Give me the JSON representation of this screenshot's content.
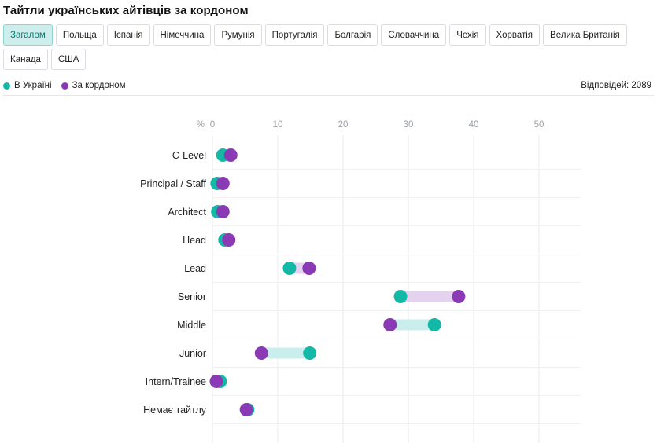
{
  "page": {
    "title": "Тайтли українських айтівців за кордоном",
    "tabs": [
      {
        "label": "Загалом",
        "active": true
      },
      {
        "label": "Польща",
        "active": false
      },
      {
        "label": "Іспанія",
        "active": false
      },
      {
        "label": "Німеччина",
        "active": false
      },
      {
        "label": "Румунія",
        "active": false
      },
      {
        "label": "Португалія",
        "active": false
      },
      {
        "label": "Болгарія",
        "active": false
      },
      {
        "label": "Словаччина",
        "active": false
      },
      {
        "label": "Чехія",
        "active": false
      },
      {
        "label": "Хорватія",
        "active": false
      },
      {
        "label": "Велика Британія",
        "active": false
      },
      {
        "label": "Канада",
        "active": false
      },
      {
        "label": "США",
        "active": false
      }
    ],
    "legend": [
      {
        "label": "В Україні",
        "color": "#14b8a6"
      },
      {
        "label": "За кордоном",
        "color": "#8b3ab5"
      }
    ],
    "responses_label": "Відповідей: 2089"
  },
  "chart_data": {
    "type": "dumbbell",
    "x_unit_label": "%",
    "x_ticks": [
      0,
      10,
      20,
      30,
      40,
      50
    ],
    "xlim": [
      0,
      57
    ],
    "categories": [
      "C-Level",
      "Principal / Staff",
      "Architect",
      "Head",
      "Lead",
      "Senior",
      "Middle",
      "Junior",
      "Intern/Trainee",
      "Немає тайтлу"
    ],
    "series": [
      {
        "name": "В Україні",
        "color": "#14b8a6",
        "values": [
          1.6,
          0.7,
          0.8,
          1.9,
          11.8,
          28.8,
          34.0,
          14.9,
          1.2,
          5.4
        ]
      },
      {
        "name": "За кордоном",
        "color": "#8b3ab5",
        "values": [
          2.8,
          1.6,
          1.6,
          2.5,
          14.8,
          37.7,
          27.2,
          7.5,
          0.6,
          5.2
        ]
      }
    ],
    "colors": {
      "up_band": "#e4d2ef",
      "down_band": "#c9eeeb",
      "grid": "#e9ebee",
      "tick": "#9aa0a6"
    }
  }
}
